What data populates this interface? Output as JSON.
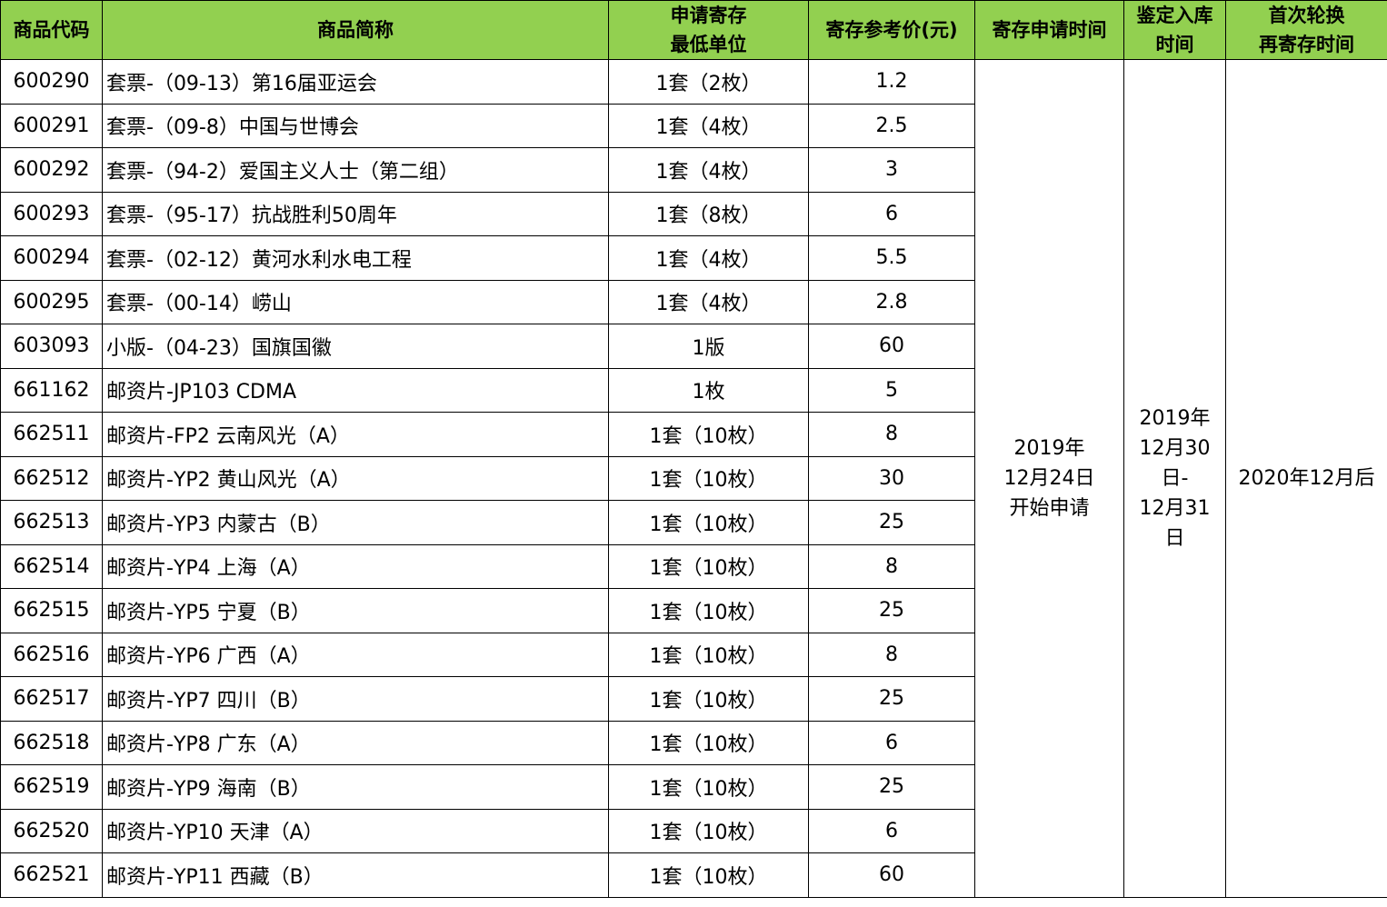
{
  "header": {
    "code": "商品代码",
    "name": "商品简称",
    "unit_line1": "申请寄存",
    "unit_line2": "最低单位",
    "price": "寄存参考价(元)",
    "apply_time": "寄存申请时间",
    "storage_line1": "鉴定入库",
    "storage_line2": "时间",
    "rotation_line1": "首次轮换",
    "rotation_line2": "再寄存时间"
  },
  "merged": {
    "apply_time": [
      "2019年",
      "12月24日",
      "开始申请"
    ],
    "storage_time": [
      "2019年",
      "12月30",
      "日-",
      "12月31",
      "日"
    ],
    "rotation_time": "2020年12月后"
  },
  "rows": [
    {
      "code": "600290",
      "name": "套票-（09-13）第16届亚运会",
      "unit": "1套（2枚）",
      "price": "1.2"
    },
    {
      "code": "600291",
      "name": "套票-（09-8）中国与世博会",
      "unit": "1套（4枚）",
      "price": "2.5"
    },
    {
      "code": "600292",
      "name": "套票-（94-2）爱国主义人士（第二组）",
      "unit": "1套（4枚）",
      "price": "3"
    },
    {
      "code": "600293",
      "name": "套票-（95-17）抗战胜利50周年",
      "unit": "1套（8枚）",
      "price": "6"
    },
    {
      "code": "600294",
      "name": "套票-（02-12）黄河水利水电工程",
      "unit": "1套（4枚）",
      "price": "5.5"
    },
    {
      "code": "600295",
      "name": "套票-（00-14）崂山",
      "unit": "1套（4枚）",
      "price": "2.8"
    },
    {
      "code": "603093",
      "name": "小版-（04-23）国旗国徽",
      "unit": "1版",
      "price": "60"
    },
    {
      "code": "661162",
      "name": "邮资片-JP103 CDMA",
      "unit": "1枚",
      "price": "5"
    },
    {
      "code": "662511",
      "name": "邮资片-FP2 云南风光（A）",
      "unit": "1套（10枚）",
      "price": "8"
    },
    {
      "code": "662512",
      "name": "邮资片-YP2 黄山风光（A）",
      "unit": "1套（10枚）",
      "price": "30"
    },
    {
      "code": "662513",
      "name": "邮资片-YP3 内蒙古（B）",
      "unit": "1套（10枚）",
      "price": "25"
    },
    {
      "code": "662514",
      "name": "邮资片-YP4 上海（A）",
      "unit": "1套（10枚）",
      "price": "8"
    },
    {
      "code": "662515",
      "name": "邮资片-YP5 宁夏（B）",
      "unit": "1套（10枚）",
      "price": "25"
    },
    {
      "code": "662516",
      "name": "邮资片-YP6 广西（A）",
      "unit": "1套（10枚）",
      "price": "8"
    },
    {
      "code": "662517",
      "name": "邮资片-YP7 四川（B）",
      "unit": "1套（10枚）",
      "price": "25"
    },
    {
      "code": "662518",
      "name": "邮资片-YP8 广东（A）",
      "unit": "1套（10枚）",
      "price": "6"
    },
    {
      "code": "662519",
      "name": "邮资片-YP9 海南（B）",
      "unit": "1套（10枚）",
      "price": "25"
    },
    {
      "code": "662520",
      "name": "邮资片-YP10 天津（A）",
      "unit": "1套（10枚）",
      "price": "6"
    },
    {
      "code": "662521",
      "name": "邮资片-YP11 西藏（B）",
      "unit": "1套（10枚）",
      "price": "60"
    }
  ]
}
